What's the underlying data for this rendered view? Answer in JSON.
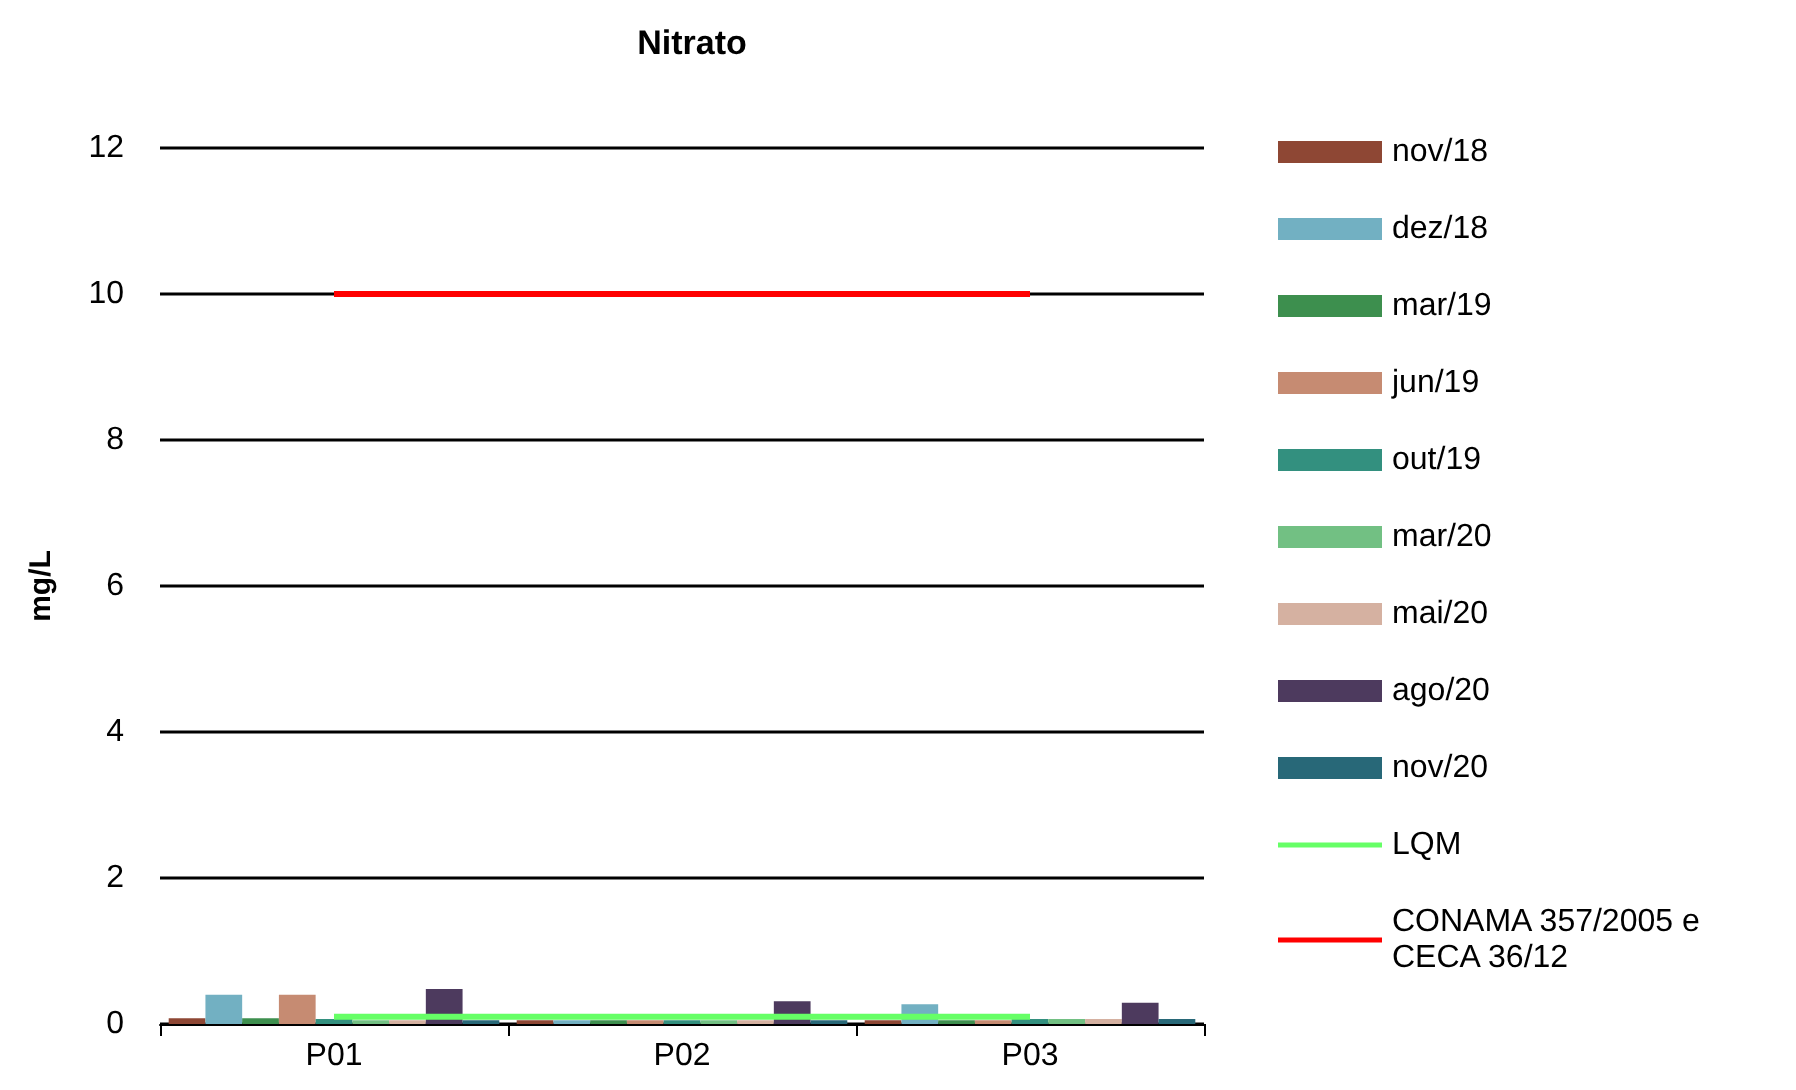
{
  "chart_data": {
    "type": "bar",
    "title": "Nitrato",
    "ylabel": "mg/L",
    "categories": [
      "P01",
      "P02",
      "P03"
    ],
    "series": [
      {
        "name": "nov/18",
        "color": "#8e4734",
        "values": [
          0.08,
          0.05,
          0.05
        ]
      },
      {
        "name": "dez/18",
        "color": "#72b0c2",
        "values": [
          0.4,
          0.05,
          0.27
        ]
      },
      {
        "name": "mar/19",
        "color": "#3d8f4e",
        "values": [
          0.08,
          0.05,
          0.05
        ]
      },
      {
        "name": "jun/19",
        "color": "#c68b72",
        "values": [
          0.4,
          0.05,
          0.05
        ]
      },
      {
        "name": "out/19",
        "color": "#33907f",
        "values": [
          0.07,
          0.05,
          0.07
        ]
      },
      {
        "name": "mar/20",
        "color": "#72c083",
        "values": [
          0.05,
          0.05,
          0.07
        ]
      },
      {
        "name": "mai/20",
        "color": "#d5b1a1",
        "values": [
          0.05,
          0.05,
          0.07
        ]
      },
      {
        "name": "ago/20",
        "color": "#4d3a5e",
        "values": [
          0.48,
          0.31,
          0.29
        ]
      },
      {
        "name": "nov/20",
        "color": "#286878",
        "values": [
          0.05,
          0.05,
          0.07
        ]
      },
      {
        "name": "LQM",
        "type": "line",
        "color": "#66ff66",
        "values": [
          0.1,
          0.1,
          0.1
        ]
      },
      {
        "name": "CONAMA 357/2005 e\nCECA 36/12",
        "type": "line",
        "color": "#ff0000",
        "values": [
          10,
          10,
          10
        ]
      }
    ],
    "ylim": [
      0,
      12
    ],
    "yticks": [
      0,
      2,
      4,
      6,
      8,
      10,
      12
    ],
    "grid": "y",
    "legend": "right"
  }
}
